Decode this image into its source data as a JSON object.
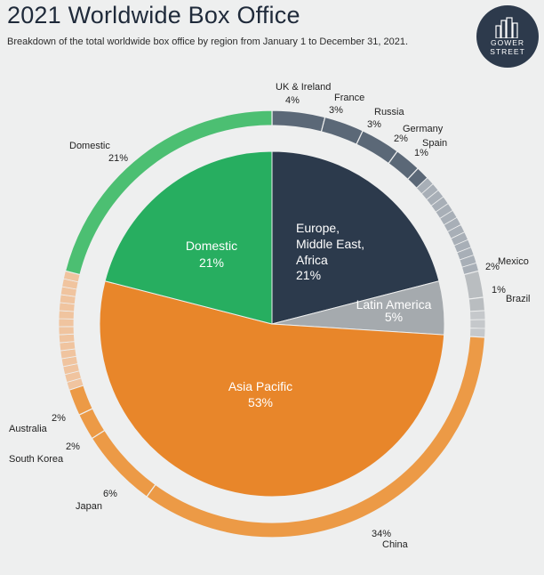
{
  "header": {
    "title": "2021 Worldwide Box Office",
    "subtitle": "Breakdown of the total worldwide box office by region from January 1 to December 31, 2021."
  },
  "logo": {
    "line1": "GOWER",
    "line2": "STREET",
    "icon": "buildings-icon"
  },
  "colors": {
    "domestic": "#27ae60",
    "emea": "#2c3a4c",
    "latam": "#a5aaae",
    "apac": "#e8862a"
  },
  "chart_data": {
    "type": "pie",
    "title": "2021 Worldwide Box Office",
    "regions": [
      {
        "name": "Domestic",
        "label": "21%",
        "value": 21
      },
      {
        "name": "Europe, Middle East, Africa",
        "label": "21%",
        "value": 21
      },
      {
        "name": "Latin America",
        "label": "5%",
        "value": 5
      },
      {
        "name": "Asia Pacific",
        "label": "53%",
        "value": 53
      }
    ],
    "markets": [
      {
        "name": "UK & Ireland",
        "label": "4%",
        "value": 4,
        "region": "Europe, Middle East, Africa"
      },
      {
        "name": "France",
        "label": "3%",
        "value": 3,
        "region": "Europe, Middle East, Africa"
      },
      {
        "name": "Russia",
        "label": "3%",
        "value": 3,
        "region": "Europe, Middle East, Africa"
      },
      {
        "name": "Germany",
        "label": "2%",
        "value": 2,
        "region": "Europe, Middle East, Africa"
      },
      {
        "name": "Spain",
        "label": "1%",
        "value": 1,
        "region": "Europe, Middle East, Africa"
      },
      {
        "name": "Mexico",
        "label": "2%",
        "value": 2,
        "region": "Latin America"
      },
      {
        "name": "Brazil",
        "label": "1%",
        "value": 1,
        "region": "Latin America"
      },
      {
        "name": "China",
        "label": "34%",
        "value": 34,
        "region": "Asia Pacific"
      },
      {
        "name": "Japan",
        "label": "6%",
        "value": 6,
        "region": "Asia Pacific"
      },
      {
        "name": "South Korea",
        "label": "2%",
        "value": 2,
        "region": "Asia Pacific"
      },
      {
        "name": "Australia",
        "label": "2%",
        "value": 2,
        "region": "Asia Pacific"
      },
      {
        "name": "Domestic",
        "label": "21%",
        "value": 21,
        "region": "Domestic"
      }
    ]
  }
}
